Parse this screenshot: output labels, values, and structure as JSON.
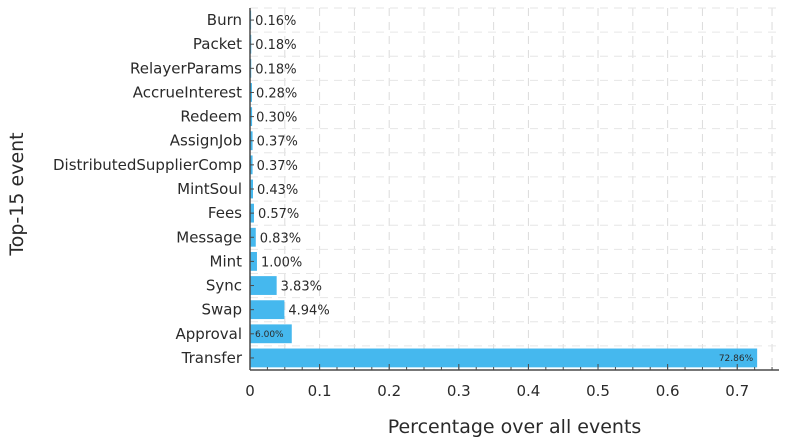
{
  "chart_data": {
    "type": "bar",
    "orientation": "horizontal",
    "title": "",
    "xlabel": "Percentage over all events",
    "ylabel": "Top-15 event",
    "xlim": [
      0,
      0.76
    ],
    "xticks": [
      0,
      0.1,
      0.2,
      0.3,
      0.4,
      0.5,
      0.6,
      0.7
    ],
    "xtick_labels": [
      "0",
      "0.1",
      "0.2",
      "0.3",
      "0.4",
      "0.5",
      "0.6",
      "0.7"
    ],
    "grid": true,
    "bar_color": "#45b8ee",
    "categories": [
      "Burn",
      "Packet",
      "RelayerParams",
      "AccrueInterest",
      "Redeem",
      "AssignJob",
      "DistributedSupplierComp",
      "MintSoul",
      "Fees",
      "Message",
      "Mint",
      "Sync",
      "Swap",
      "Approval",
      "Transfer"
    ],
    "values": [
      0.0016,
      0.0018,
      0.0018,
      0.0028,
      0.003,
      0.0037,
      0.0037,
      0.0043,
      0.0057,
      0.0083,
      0.01,
      0.0383,
      0.0494,
      0.06,
      0.7286
    ],
    "value_labels": [
      "0.16%",
      "0.18%",
      "0.18%",
      "0.28%",
      "0.30%",
      "0.37%",
      "0.37%",
      "0.43%",
      "0.57%",
      "0.83%",
      "1.00%",
      "3.83%",
      "4.94%",
      "6.00%",
      "72.86%"
    ]
  }
}
